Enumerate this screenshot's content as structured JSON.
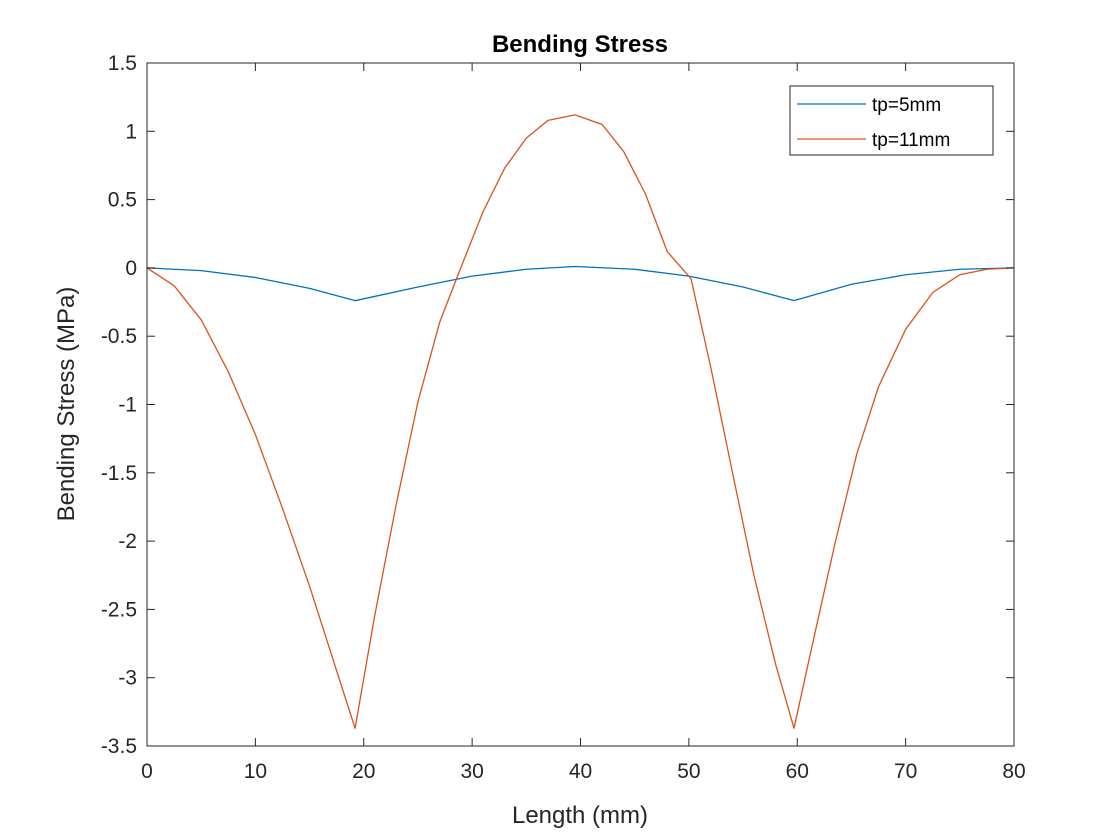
{
  "chart_data": {
    "type": "line",
    "title": "Bending Stress",
    "xlabel": "Length (mm)",
    "ylabel": "Bending Stress (MPa)",
    "xlim": [
      0,
      80
    ],
    "ylim": [
      -3.5,
      1.5
    ],
    "x_ticks": [
      0,
      10,
      20,
      30,
      40,
      50,
      60,
      70,
      80
    ],
    "x_tick_labels": [
      "0",
      "10",
      "20",
      "30",
      "40",
      "50",
      "60",
      "70",
      "80"
    ],
    "y_ticks": [
      1.5,
      1,
      0.5,
      0,
      -0.5,
      -1,
      -1.5,
      -2,
      -2.5,
      -3,
      -3.5
    ],
    "y_tick_labels": [
      "1.5",
      "1",
      "0.5",
      "0",
      "-0.5",
      "-1",
      "-1.5",
      "-2",
      "-2.5",
      "-3",
      "-3.5"
    ],
    "grid": false,
    "legend_position": "top-right",
    "series": [
      {
        "name": "tp=5mm",
        "color": "#0072BD",
        "x": [
          0,
          5,
          10,
          15,
          19.2,
          25,
          30,
          35,
          39.5,
          45,
          50,
          55,
          59.7,
          65,
          70,
          75,
          80
        ],
        "y": [
          0,
          -0.02,
          -0.07,
          -0.15,
          -0.24,
          -0.14,
          -0.06,
          -0.01,
          0.01,
          -0.01,
          -0.06,
          -0.14,
          -0.24,
          -0.12,
          -0.05,
          -0.01,
          0
        ]
      },
      {
        "name": "tp=11mm",
        "color": "#D95319",
        "x": [
          0,
          2.5,
          5,
          7.5,
          10,
          12.5,
          15,
          17.5,
          19.2,
          21,
          23,
          25,
          27,
          28.7,
          31,
          33,
          35,
          37,
          39.5,
          42,
          44,
          46,
          48,
          50.2,
          52,
          54,
          56,
          58,
          59.7,
          61.5,
          63.5,
          65.5,
          67.5,
          70,
          72.5,
          75,
          77.5,
          80
        ],
        "y": [
          0,
          -0.13,
          -0.38,
          -0.76,
          -1.22,
          -1.76,
          -2.33,
          -2.95,
          -3.37,
          -2.55,
          -1.73,
          -0.98,
          -0.4,
          -0.05,
          0.41,
          0.73,
          0.95,
          1.08,
          1.12,
          1.05,
          0.85,
          0.54,
          0.12,
          -0.08,
          -0.72,
          -1.49,
          -2.25,
          -2.9,
          -3.37,
          -2.72,
          -2.01,
          -1.36,
          -0.87,
          -0.45,
          -0.18,
          -0.05,
          -0.01,
          0
        ]
      }
    ]
  }
}
